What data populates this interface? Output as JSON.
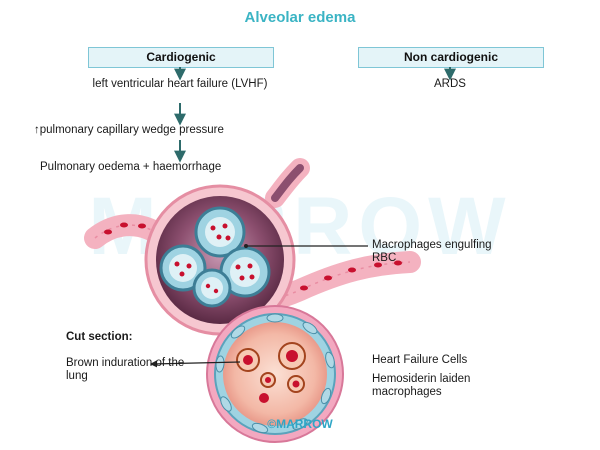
{
  "title": "Alveolar edema",
  "cardiogenic": {
    "label": "Cardiogenic",
    "steps": [
      "left ventricular heart failure (LVHF)",
      "↑pulmonary capillary wedge pressure",
      "Pulmonary oedema + haemorrhage"
    ]
  },
  "non_cardiogenic": {
    "label": "Non cardiogenic",
    "steps": [
      "ARDS"
    ]
  },
  "watermark": "MARROW",
  "annotations": {
    "macrophages": "Macrophages engulfing RBC",
    "cut_section": "Cut section:",
    "brown_induration": "Brown induration of the lung",
    "heart_failure_cells": "Heart Failure Cells",
    "hemosiderin": "Hemosiderin laiden macrophages"
  },
  "footer": "©MARROW",
  "colors": {
    "title": "#3bb4c4",
    "box_fill": "#e4f4f8",
    "box_border": "#7fc6d6",
    "arrow": "#2e6b6b",
    "vessel": "#f2a7b6",
    "rbc": "#c8102e",
    "alveolus_fill": "#6b3a55",
    "macrophage": "#4a8fa8"
  }
}
